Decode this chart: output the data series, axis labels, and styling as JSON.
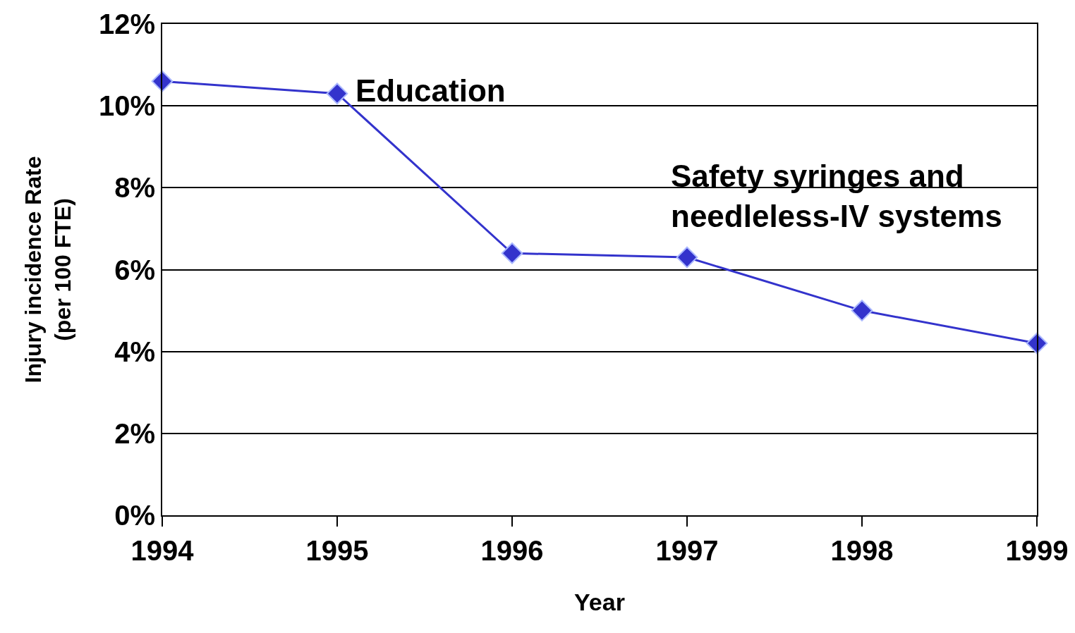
{
  "chart_data": {
    "type": "line",
    "xlabel": "Year",
    "ylabel": "Injury incidence Rate\n(per 100 FTE)",
    "x": [
      1994,
      1995,
      1996,
      1997,
      1998,
      1999
    ],
    "series": [
      {
        "color": "#3333cc",
        "values": [
          10.6,
          10.3,
          6.4,
          6.3,
          5.0,
          4.2
        ]
      }
    ],
    "xlim": [
      1994,
      1999
    ],
    "xticks": [
      1994,
      1995,
      1996,
      1997,
      1998,
      1999
    ],
    "ylim": [
      0,
      12
    ],
    "yticks": [
      {
        "value": 0,
        "label": "0%"
      },
      {
        "value": 2,
        "label": "2%"
      },
      {
        "value": 4,
        "label": "4%"
      },
      {
        "value": 6,
        "label": "6%"
      },
      {
        "value": 8,
        "label": "8%"
      },
      {
        "value": 10,
        "label": "10%"
      },
      {
        "value": 12,
        "label": "12%"
      }
    ],
    "grid": "y",
    "marker": "diamond",
    "line_style": "solid",
    "annotations": [
      {
        "text": "Education",
        "x": 1995,
        "y": 10.3
      },
      {
        "text": "Safety syringes and\nneedleless-IV systems",
        "x": 1997,
        "y": 6.3
      }
    ]
  }
}
